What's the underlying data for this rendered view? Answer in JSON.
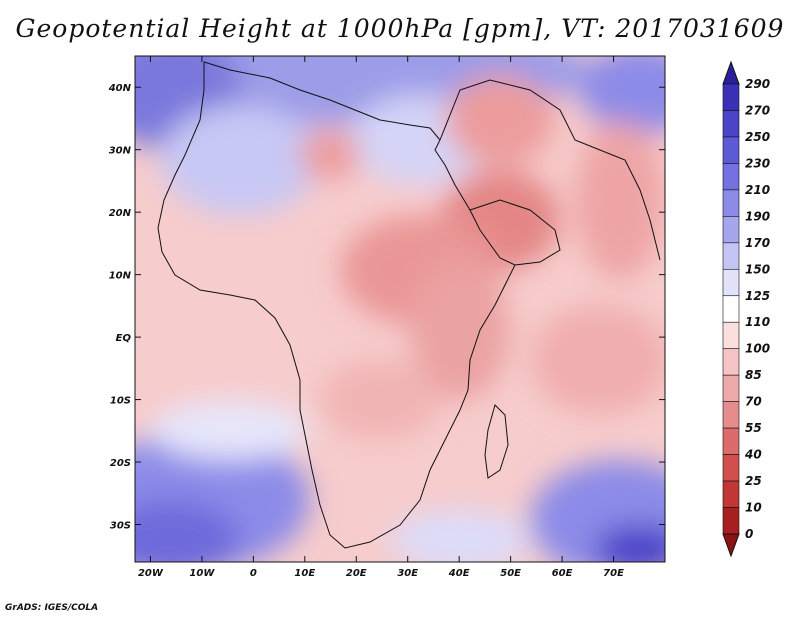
{
  "title": "Geopotential Height at 1000hPa [gpm], VT: 2017031609",
  "credit": "GrADS: IGES/COLA",
  "map": {
    "lon_range": [
      -23,
      80
    ],
    "lat_range": [
      -36,
      45
    ],
    "lon_labels": [
      "20W",
      "10W",
      "0",
      "10E",
      "20E",
      "30E",
      "40E",
      "50E",
      "60E",
      "70E"
    ],
    "lon_values": [
      -20,
      -10,
      0,
      10,
      20,
      30,
      40,
      50,
      60,
      70
    ],
    "lat_labels": [
      "40N",
      "30N",
      "20N",
      "10N",
      "EQ",
      "10S",
      "20S",
      "30S"
    ],
    "lat_values": [
      40,
      30,
      20,
      10,
      0,
      -10,
      -20,
      -30
    ]
  },
  "colorbar": {
    "levels": [
      "290",
      "270",
      "250",
      "230",
      "210",
      "190",
      "170",
      "150",
      "125",
      "110",
      "100",
      "85",
      "70",
      "55",
      "40",
      "25",
      "10",
      "0"
    ],
    "colors": [
      "#2b1f9e",
      "#3a2fb6",
      "#4b44c8",
      "#5d5ad6",
      "#7471e0",
      "#8c8be8",
      "#a6a6ee",
      "#c4c4f5",
      "#e2e2fb",
      "#ffffff",
      "#fbdede",
      "#f6c4c4",
      "#eeaaaa",
      "#e58c8c",
      "#dc6c6c",
      "#d24f4f",
      "#c33636",
      "#a81f1f",
      "#8c1313"
    ]
  }
}
